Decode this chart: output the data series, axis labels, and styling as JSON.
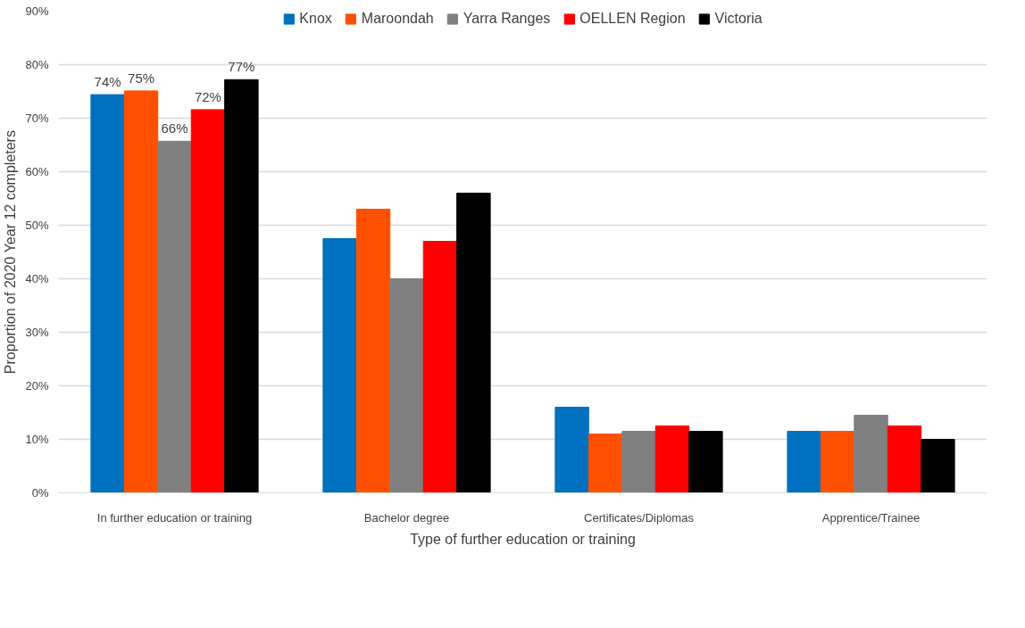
{
  "chart_data": {
    "type": "bar",
    "xlabel": "Type of further education or training",
    "ylabel": "Proportion of 2020 Year 12 completers",
    "categories": [
      "In further education or training",
      "Bachelor degree",
      "Certificates/Diplomas",
      "Apprentice/Trainee"
    ],
    "series": [
      {
        "name": "Knox",
        "color": "#0070c0",
        "values": [
          74.4,
          47.5,
          16,
          11.5
        ],
        "value_labels": [
          "74%",
          null,
          null,
          null
        ]
      },
      {
        "name": "Maroondah",
        "color": "#ff5000",
        "values": [
          75.1,
          53,
          11,
          11.5
        ],
        "value_labels": [
          "75%",
          null,
          null,
          null
        ]
      },
      {
        "name": "Yarra Ranges",
        "color": "#808080",
        "values": [
          65.7,
          40,
          11.5,
          14.5
        ],
        "value_labels": [
          "66%",
          null,
          null,
          null
        ]
      },
      {
        "name": "OELLEN Region",
        "color": "#ff0000",
        "values": [
          71.6,
          47,
          12.5,
          12.5
        ],
        "value_labels": [
          "72%",
          null,
          null,
          null
        ]
      },
      {
        "name": "Victoria",
        "color": "#000000",
        "values": [
          77.2,
          56,
          11.5,
          10
        ],
        "value_labels": [
          "77%",
          null,
          null,
          null
        ]
      }
    ],
    "ylim": [
      0,
      90
    ],
    "yticks": [
      {
        "value": 0,
        "label": "0%"
      },
      {
        "value": 10,
        "label": "10%"
      },
      {
        "value": 20,
        "label": "20%"
      },
      {
        "value": 30,
        "label": "30%"
      },
      {
        "value": 40,
        "label": "40%"
      },
      {
        "value": 50,
        "label": "50%"
      },
      {
        "value": 60,
        "label": "60%"
      },
      {
        "value": 70,
        "label": "70%"
      },
      {
        "value": 80,
        "label": "80%"
      },
      {
        "value": 90,
        "label": "90%"
      }
    ],
    "grid": "y",
    "legend": "top"
  }
}
